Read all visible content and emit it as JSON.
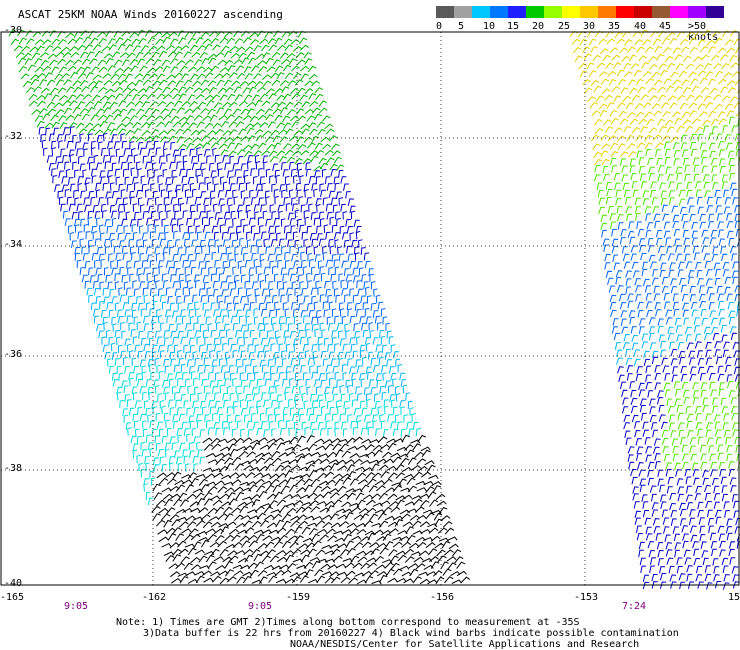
{
  "title": "ASCAT 25KM NOAA Winds 20160227 ascending",
  "legend": {
    "colors": [
      "#5a5a5a",
      "#a0a0a0",
      "#00c8ff",
      "#0078ff",
      "#1e1eff",
      "#00c800",
      "#96ff00",
      "#ffff00",
      "#ffc800",
      "#ff7800",
      "#ff0000",
      "#c80000",
      "#965a32",
      "#ff00ff",
      "#a000ff",
      "#320096"
    ],
    "labels": [
      "0",
      "5",
      "10",
      "15",
      "20",
      "25",
      "30",
      "35",
      "40",
      "45",
      ">50 knots"
    ]
  },
  "axes": {
    "y_labels": [
      "-30",
      "-32",
      "-34",
      "-36",
      "-38",
      "-40"
    ],
    "x_labels": [
      "-165",
      "-162",
      "-159",
      "-156",
      "-153"
    ],
    "x_right_partial": "15"
  },
  "times": [
    "9:05",
    "9:05",
    "7:24"
  ],
  "notes": {
    "line1": "Note: 1) Times are GMT 2)Times along bottom correspond to measurement at -35S",
    "line2": "3)Data buffer is 22 hrs from 20160227 4) Black wind barbs indicate possible contamination",
    "line3": "NOAA/NESDIS/Center for Satellite Applications and Research"
  },
  "swath_colors": {
    "green": "#00b400",
    "dark_blue": "#0000c8",
    "blue": "#0064ff",
    "light_blue": "#00b4ff",
    "cyan": "#00dcdc",
    "black": "#000000",
    "yellow": "#e6d200",
    "orange_yellow": "#ffdc00",
    "lime": "#50e600"
  }
}
